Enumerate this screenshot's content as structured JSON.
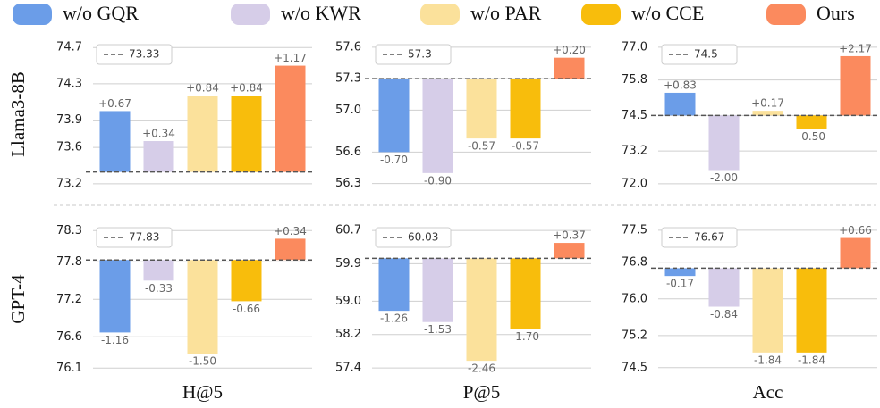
{
  "legend": [
    {
      "name": "w/o GQR",
      "color": "#6b9de8"
    },
    {
      "name": "w/o KWR",
      "color": "#d6cde8"
    },
    {
      "name": "w/o PAR",
      "color": "#fbe19b"
    },
    {
      "name": "w/o CCE",
      "color": "#f8bd0c"
    },
    {
      "name": "Ours",
      "color": "#fb8a5e"
    }
  ],
  "row_labels": [
    "Llama3-8B",
    "GPT-4"
  ],
  "column_labels": [
    "H@5",
    "P@5",
    "Acc"
  ],
  "chart_data": [
    {
      "type": "bar",
      "baseline": 73.33,
      "values": [
        0.67,
        0.34,
        0.84,
        0.84,
        1.17
      ],
      "value_labels": [
        "+0.67",
        "+0.34",
        "+0.84",
        "+0.84",
        "+1.17"
      ],
      "ylim": [
        73.11,
        74.83
      ],
      "yticks": [
        74.7,
        74.3,
        73.9,
        73.6,
        73.2
      ],
      "grid": true
    },
    {
      "type": "bar",
      "baseline": 57.3,
      "values": [
        -0.7,
        -0.9,
        -0.57,
        -0.57,
        0.2
      ],
      "value_labels": [
        "-0.70",
        "-0.90",
        "-0.57",
        "-0.57",
        "+0.20"
      ],
      "ylim": [
        56.22,
        57.71
      ],
      "yticks": [
        57.6,
        57.3,
        {
          "value": 57,
          "label": "57.0"
        },
        56.6,
        56.3
      ],
      "grid": true
    },
    {
      "type": "bar",
      "baseline": 74.5,
      "values": [
        0.83,
        -2,
        0.17,
        -0.5,
        2.17
      ],
      "value_labels": [
        "+0.83",
        "-2.00",
        "+0.17",
        "-0.50",
        "+2.17"
      ],
      "ylim": [
        71.7,
        77.42
      ],
      "yticks": [
        {
          "value": 77,
          "label": "77.0"
        },
        75.8,
        74.5,
        73.2,
        {
          "value": 72,
          "label": "72.0"
        }
      ],
      "grid": true
    },
    {
      "type": "bar",
      "baseline": 77.83,
      "values": [
        -1.16,
        -0.33,
        -1.5,
        -0.66,
        0.34
      ],
      "value_labels": [
        "-1.16",
        "-0.33",
        "-1.50",
        "-0.66",
        "+0.34"
      ],
      "ylim": [
        75.99,
        78.49
      ],
      "yticks": [
        78.3,
        77.8,
        77.2,
        76.6,
        76.1
      ],
      "grid": true
    },
    {
      "type": "bar",
      "baseline": 60.03,
      "values": [
        -1.26,
        -1.53,
        -2.46,
        -1.7,
        0.37
      ],
      "value_labels": [
        "-1.26",
        "-1.53",
        "-2.46",
        "-1.70",
        "+0.37"
      ],
      "ylim": [
        57.23,
        60.98
      ],
      "yticks": [
        60.7,
        59.9,
        {
          "value": 59,
          "label": "59.0"
        },
        58.2,
        57.4
      ],
      "grid": true
    },
    {
      "type": "bar",
      "baseline": 76.67,
      "values": [
        -0.17,
        -0.84,
        -1.84,
        -1.84,
        0.66
      ],
      "value_labels": [
        "-0.17",
        "-0.84",
        "-1.84",
        "-1.84",
        "+0.66"
      ],
      "ylim": [
        74.34,
        77.75
      ],
      "yticks": [
        77.5,
        76.8,
        {
          "value": 76,
          "label": "76.0"
        },
        75.2,
        74.5
      ],
      "grid": true
    }
  ]
}
